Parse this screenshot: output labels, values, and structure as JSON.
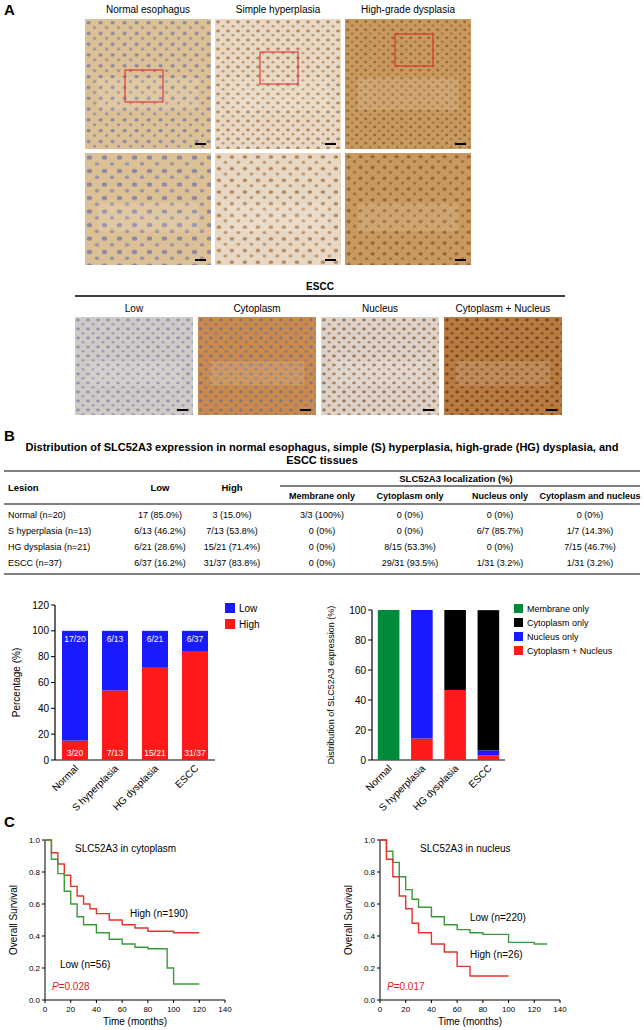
{
  "panel_a": {
    "label": "A",
    "columns": [
      "Normal esophagus",
      "Simple hyperplasia",
      "High-grade dysplasia"
    ],
    "escc_title": "ESCC",
    "escc_columns": [
      "Low",
      "Cytoplasm",
      "Nucleus",
      "Cytoplasm + Nucleus"
    ]
  },
  "panel_b": {
    "label": "B",
    "title": "Distribution of SLC52A3 expression in normal esophagus, simple (S) hyperplasia, high-grade (HG) dysplasia, and ESCC tissues",
    "table": {
      "columns": [
        "Lesion",
        "Low",
        "High"
      ],
      "group_header": "SLC52A3 localization (%)",
      "group_columns": [
        "Membrane only",
        "Cytoplasm only",
        "Nucleus only",
        "Cytoplasm and nucleus"
      ],
      "rows": [
        [
          "Normal (n=20)",
          "17 (85.0%)",
          "3 (15.0%)",
          "3/3 (100%)",
          "0 (0%)",
          "0 (0%)",
          "0 (0%)"
        ],
        [
          "S hyperplasia (n=13)",
          "6/13 (46.2%)",
          "7/13 (53.8%)",
          "0 (0%)",
          "0 (0%)",
          "6/7 (85.7%)",
          "1/7 (14.3%)"
        ],
        [
          "HG dysplasia (n=21)",
          "6/21 (28.6%)",
          "15/21 (71.4%)",
          "0 (0%)",
          "8/15 (53.3%)",
          "0 (0%)",
          "7/15 (46.7%)"
        ],
        [
          "ESCC (n=37)",
          "6/37 (16.2%)",
          "31/37 (83.8%)",
          "0 (0%)",
          "29/31 (93.5%)",
          "1/31 (3.2%)",
          "1/31 (3.2%)"
        ]
      ]
    }
  },
  "panel_c": {
    "label": "C"
  },
  "chart_data": [
    {
      "type": "bar",
      "stacked": true,
      "y_label": "Percentage (%)",
      "categories": [
        "Normal",
        "S hyperplasia",
        "HG dysplasia",
        "ESCC"
      ],
      "series": [
        {
          "name": "Low",
          "color": "#1a1aff",
          "values": [
            85.0,
            46.2,
            28.6,
            16.2
          ],
          "value_labels": [
            "17/20",
            "6/13",
            "6/21",
            "6/37"
          ]
        },
        {
          "name": "High",
          "color": "#ff1a1a",
          "values": [
            15.0,
            53.8,
            71.4,
            83.8
          ],
          "value_labels": [
            "3/20",
            "7/13",
            "15/21",
            "31/37"
          ]
        }
      ],
      "ylim": [
        0,
        120
      ],
      "yticks": [
        0,
        20,
        40,
        60,
        80,
        100,
        120
      ],
      "grid": false,
      "data_labels": true,
      "legend": "right"
    },
    {
      "type": "bar",
      "stacked": true,
      "y_label": "Distribution of SLC52A3 expression (%)",
      "categories": [
        "Normal",
        "S hyperplasia",
        "HG dysplasia",
        "ESCC"
      ],
      "series": [
        {
          "name": "Membrane only",
          "color": "#008a3a",
          "values": [
            100,
            0,
            0,
            0
          ]
        },
        {
          "name": "Cytoplasm only",
          "color": "#000000",
          "values": [
            0,
            0,
            53.3,
            93.5
          ]
        },
        {
          "name": "Nucleus only",
          "color": "#1a1aff",
          "values": [
            0,
            85.7,
            0,
            3.2
          ]
        },
        {
          "name": "Cytoplasm + Nucleus",
          "color": "#ff1a1a",
          "values": [
            0,
            14.3,
            46.7,
            3.2
          ]
        }
      ],
      "ylim": [
        0,
        100
      ],
      "yticks": [
        0,
        20,
        40,
        60,
        80,
        100
      ],
      "grid": false,
      "legend": "right"
    },
    {
      "type": "line",
      "title": "SLC52A3 in cytoplasm",
      "x_label": "Time (months)",
      "y_label": "Overall  Survival",
      "annotation": "P=0.028",
      "series": [
        {
          "name": "High (n=190)",
          "color": "#e8332a",
          "line_style": "step",
          "x": [
            0,
            5,
            10,
            15,
            20,
            25,
            30,
            35,
            40,
            50,
            60,
            70,
            80,
            100,
            120
          ],
          "values": [
            1.0,
            0.92,
            0.85,
            0.78,
            0.71,
            0.65,
            0.6,
            0.57,
            0.54,
            0.5,
            0.47,
            0.45,
            0.43,
            0.42,
            0.42
          ]
        },
        {
          "name": "Low (n=56)",
          "color": "#3a9a3a",
          "line_style": "step",
          "x": [
            0,
            5,
            10,
            15,
            20,
            25,
            30,
            40,
            50,
            60,
            70,
            80,
            95,
            100,
            120
          ],
          "values": [
            1.0,
            0.88,
            0.79,
            0.68,
            0.6,
            0.52,
            0.47,
            0.42,
            0.38,
            0.35,
            0.33,
            0.32,
            0.2,
            0.1,
            0.1
          ]
        }
      ],
      "xlim": [
        0,
        140
      ],
      "xticks": [
        0,
        20,
        40,
        60,
        80,
        100,
        120,
        140
      ],
      "ylim": [
        0,
        1.0
      ],
      "yticks": [
        {
          "value": 0,
          "label": "0.0"
        },
        {
          "value": 0.2,
          "label": "0.2"
        },
        {
          "value": 0.4,
          "label": "0.4"
        },
        {
          "value": 0.6,
          "label": "0.6"
        },
        {
          "value": 0.8,
          "label": "0.8"
        },
        {
          "value": 1.0,
          "label": "1.0"
        }
      ],
      "grid": false
    },
    {
      "type": "line",
      "title": "SLC52A3 in nucleus",
      "x_label": "Time (months)",
      "y_label": "Overall  Survival",
      "annotation": "P=0.017",
      "series": [
        {
          "name": "Low (n=220)",
          "color": "#3a9a3a",
          "line_style": "step",
          "x": [
            0,
            5,
            10,
            15,
            20,
            25,
            30,
            40,
            50,
            60,
            70,
            80,
            100,
            120,
            130
          ],
          "values": [
            1.0,
            0.93,
            0.86,
            0.77,
            0.69,
            0.63,
            0.58,
            0.52,
            0.47,
            0.44,
            0.42,
            0.41,
            0.36,
            0.35,
            0.35
          ]
        },
        {
          "name": "High (n=26)",
          "color": "#e8332a",
          "line_style": "step",
          "x": [
            0,
            5,
            10,
            15,
            20,
            25,
            30,
            40,
            50,
            60,
            70,
            100
          ],
          "values": [
            1.0,
            0.88,
            0.77,
            0.65,
            0.57,
            0.48,
            0.42,
            0.35,
            0.3,
            0.21,
            0.15,
            0.15
          ]
        }
      ],
      "xlim": [
        0,
        140
      ],
      "xticks": [
        0,
        20,
        40,
        60,
        80,
        100,
        120,
        140
      ],
      "ylim": [
        0,
        1.0
      ],
      "yticks": [
        {
          "value": 0,
          "label": "0.0"
        },
        {
          "value": 0.2,
          "label": "0.2"
        },
        {
          "value": 0.4,
          "label": "0.4"
        },
        {
          "value": 0.6,
          "label": "0.6"
        },
        {
          "value": 0.8,
          "label": "0.8"
        },
        {
          "value": 1.0,
          "label": "1.0"
        }
      ],
      "grid": false
    }
  ]
}
